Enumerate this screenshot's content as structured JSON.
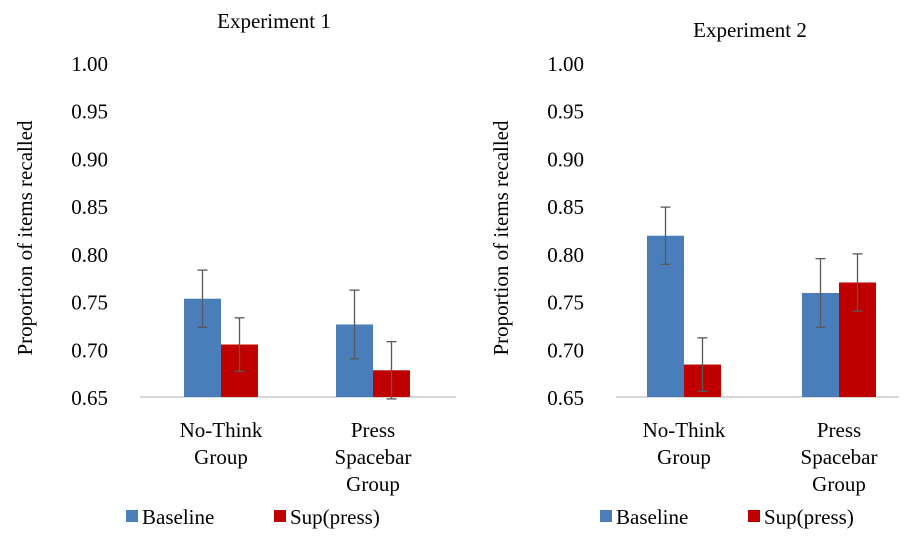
{
  "colors": {
    "baseline": "#4a7ebb",
    "sup_press": "#c00000",
    "axis": "#bfbfbf",
    "error_bar": "#595959"
  },
  "chart_data": [
    {
      "type": "bar",
      "title": "Experiment 1",
      "ylabel": "Proportion of items recalled",
      "xlabel": "",
      "ylim": [
        0.65,
        1.0
      ],
      "yticks": [
        "0.65",
        "0.70",
        "0.75",
        "0.80",
        "0.85",
        "0.90",
        "0.95",
        "1.00"
      ],
      "grid": false,
      "legend": "bottom",
      "categories": [
        [
          "No-Think",
          "Group"
        ],
        [
          "Press",
          "Spacebar",
          "Group"
        ]
      ],
      "series": [
        {
          "name": "Baseline",
          "values": [
            0.753,
            0.726
          ],
          "errors": [
            0.03,
            0.036
          ]
        },
        {
          "name": "Sup(press)",
          "values": [
            0.705,
            0.678
          ],
          "errors": [
            0.028,
            0.03
          ]
        }
      ]
    },
    {
      "type": "bar",
      "title": "Experiment 2",
      "ylabel": "Proportion of items recalled",
      "xlabel": "",
      "ylim": [
        0.65,
        1.0
      ],
      "yticks": [
        "0.65",
        "0.70",
        "0.75",
        "0.80",
        "0.85",
        "0.90",
        "0.95",
        "1.00"
      ],
      "grid": false,
      "legend": "bottom",
      "categories": [
        [
          "No-Think",
          "Group"
        ],
        [
          "Press",
          "Spacebar",
          "Group"
        ]
      ],
      "series": [
        {
          "name": "Baseline",
          "values": [
            0.819,
            0.759
          ],
          "errors": [
            0.03,
            0.036
          ]
        },
        {
          "name": "Sup(press)",
          "values": [
            0.684,
            0.77
          ],
          "errors": [
            0.028,
            0.03
          ]
        }
      ]
    }
  ]
}
